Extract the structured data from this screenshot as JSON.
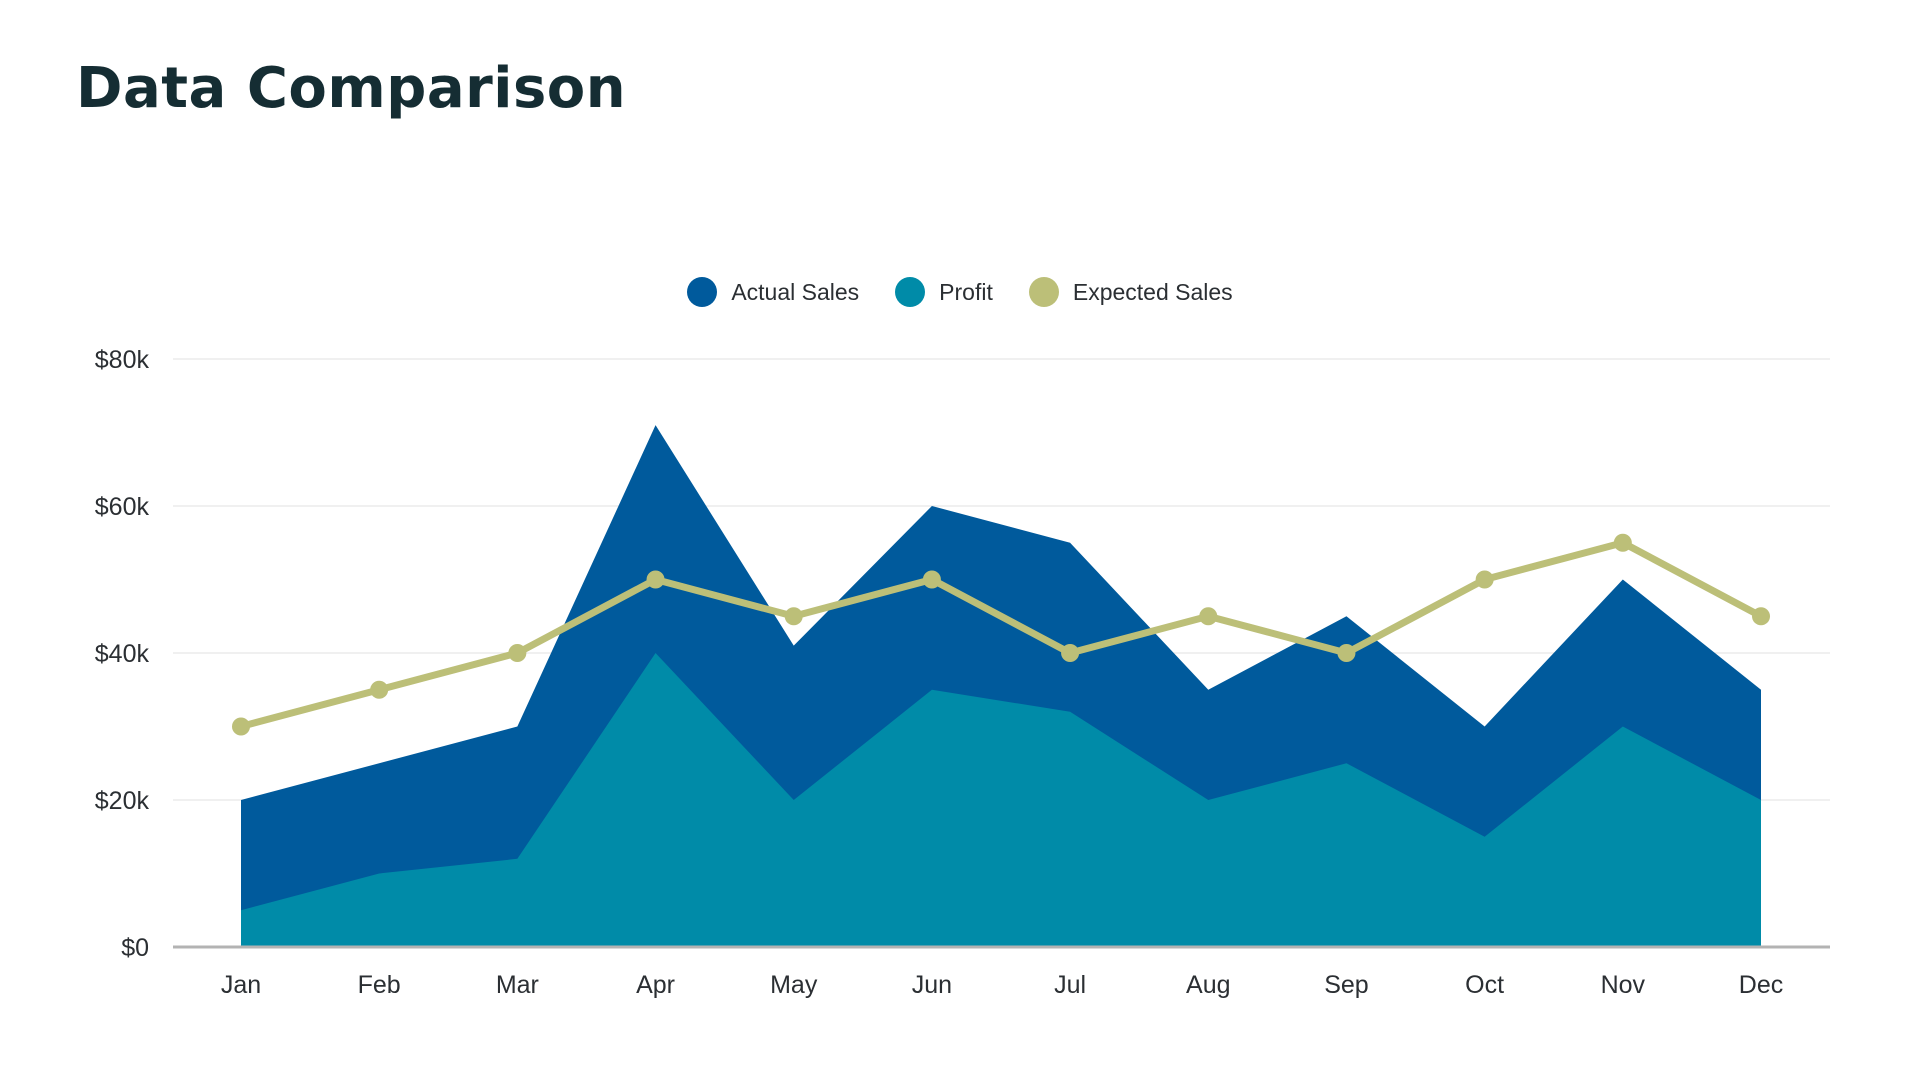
{
  "title": "Data Comparison",
  "colors": {
    "actual": "#005a9c",
    "profit": "#008ba8",
    "expected": "#bcbf78",
    "grid": "#e6e6e6",
    "axis": "#b3b3b3"
  },
  "legend": [
    {
      "label": "Actual Sales",
      "color": "#005a9c"
    },
    {
      "label": "Profit",
      "color": "#008ba8"
    },
    {
      "label": "Expected Sales",
      "color": "#bcbf78"
    }
  ],
  "chart_data": {
    "type": "area",
    "categories": [
      "Jan",
      "Feb",
      "Mar",
      "Apr",
      "May",
      "Jun",
      "Jul",
      "Aug",
      "Sep",
      "Oct",
      "Nov",
      "Dec"
    ],
    "series": [
      {
        "name": "Actual Sales",
        "type": "area",
        "values": [
          20,
          25,
          30,
          71,
          41,
          60,
          55,
          35,
          45,
          30,
          50,
          35
        ]
      },
      {
        "name": "Profit",
        "type": "area",
        "values": [
          5,
          10,
          12,
          40,
          20,
          35,
          32,
          20,
          25,
          15,
          30,
          20
        ]
      },
      {
        "name": "Expected Sales",
        "type": "line",
        "values": [
          30,
          35,
          40,
          50,
          45,
          50,
          40,
          45,
          40,
          50,
          55,
          45
        ]
      }
    ],
    "ylim": [
      0,
      80
    ],
    "yticks": [
      0,
      20,
      40,
      60,
      80
    ],
    "ytick_labels": [
      "$0",
      "$20k",
      "$40k",
      "$60k",
      "$80k"
    ],
    "grid": true,
    "legend_position": "top-center",
    "xlabel": "",
    "ylabel": ""
  }
}
